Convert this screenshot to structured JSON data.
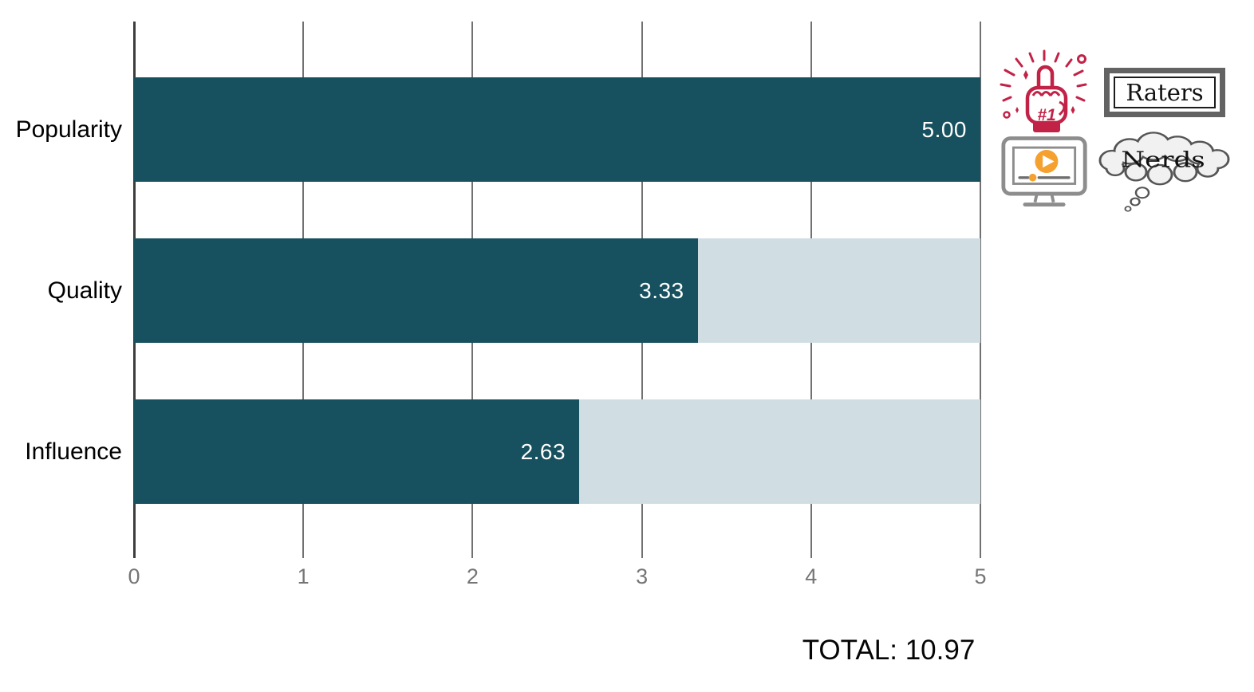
{
  "chart_data": {
    "type": "bar",
    "orientation": "horizontal",
    "categories": [
      "Popularity",
      "Quality",
      "Influence"
    ],
    "values": [
      5.0,
      3.33,
      2.63
    ],
    "value_labels": [
      "5.00",
      "3.33",
      "2.63"
    ],
    "xlim": [
      0,
      5
    ],
    "x_ticks": [
      "0",
      "1",
      "2",
      "3",
      "4",
      "5"
    ],
    "grid": true,
    "legend": "none",
    "bar_color": "#17505e",
    "bar_remainder_color": "#d0dee4",
    "value_label_color": "#ffffff",
    "axis_line_color": "#3d3d3d",
    "gridline_color": "#717171",
    "tick_label_color": "#757575",
    "category_label_color": "#000000",
    "total_label": "TOTAL: 10.97"
  },
  "annotations": {
    "raters_label": "Raters",
    "nerds_label": "Nerds",
    "finger_icon_color": "#c22246",
    "play_icon_color": "#f5a12f",
    "monitor_outline_color": "#8d8d8d",
    "cloud_fill_color": "#f1f1f1",
    "cloud_outline_color": "#555555",
    "raters_frame_color": "#636363"
  }
}
